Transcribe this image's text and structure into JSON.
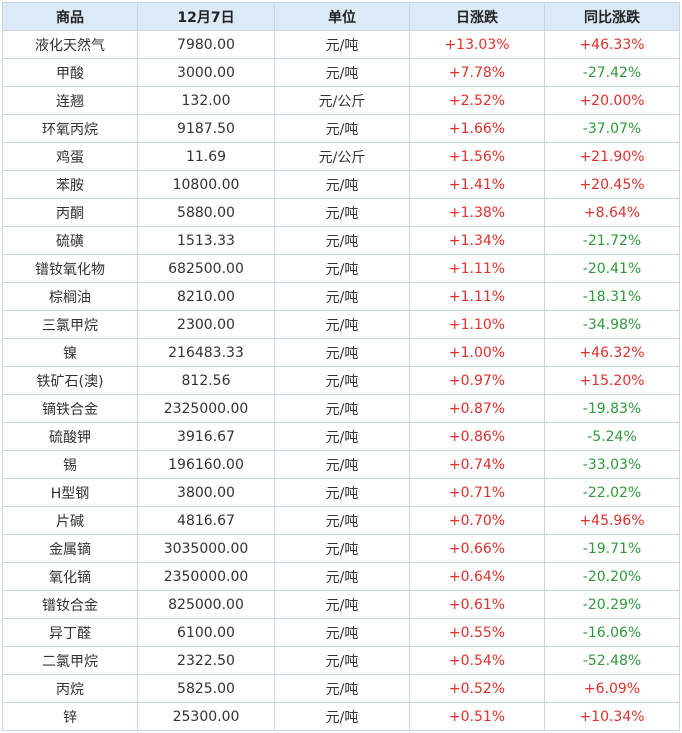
{
  "headers": [
    "商品",
    "12月7日",
    "单位",
    "日涨跌",
    "同比涨跌"
  ],
  "rows": [
    {
      "name": "液化天然气",
      "price": "7980.00",
      "unit": "元/吨",
      "daily": "+13.03%",
      "yoy": "+46.33%"
    },
    {
      "name": "甲酸",
      "price": "3000.00",
      "unit": "元/吨",
      "daily": "+7.78%",
      "yoy": "-27.42%"
    },
    {
      "name": "连翘",
      "price": "132.00",
      "unit": "元/公斤",
      "daily": "+2.52%",
      "yoy": "+20.00%"
    },
    {
      "name": "环氧丙烷",
      "price": "9187.50",
      "unit": "元/吨",
      "daily": "+1.66%",
      "yoy": "-37.07%"
    },
    {
      "name": "鸡蛋",
      "price": "11.69",
      "unit": "元/公斤",
      "daily": "+1.56%",
      "yoy": "+21.90%"
    },
    {
      "name": "苯胺",
      "price": "10800.00",
      "unit": "元/吨",
      "daily": "+1.41%",
      "yoy": "+20.45%"
    },
    {
      "name": "丙酮",
      "price": "5880.00",
      "unit": "元/吨",
      "daily": "+1.38%",
      "yoy": "+8.64%"
    },
    {
      "name": "硫磺",
      "price": "1513.33",
      "unit": "元/吨",
      "daily": "+1.34%",
      "yoy": "-21.72%"
    },
    {
      "name": "镨钕氧化物",
      "price": "682500.00",
      "unit": "元/吨",
      "daily": "+1.11%",
      "yoy": "-20.41%"
    },
    {
      "name": "棕榈油",
      "price": "8210.00",
      "unit": "元/吨",
      "daily": "+1.11%",
      "yoy": "-18.31%"
    },
    {
      "name": "三氯甲烷",
      "price": "2300.00",
      "unit": "元/吨",
      "daily": "+1.10%",
      "yoy": "-34.98%"
    },
    {
      "name": "镍",
      "price": "216483.33",
      "unit": "元/吨",
      "daily": "+1.00%",
      "yoy": "+46.32%"
    },
    {
      "name": "铁矿石(澳)",
      "price": "812.56",
      "unit": "元/吨",
      "daily": "+0.97%",
      "yoy": "+15.20%"
    },
    {
      "name": "镝铁合金",
      "price": "2325000.00",
      "unit": "元/吨",
      "daily": "+0.87%",
      "yoy": "-19.83%"
    },
    {
      "name": "硫酸钾",
      "price": "3916.67",
      "unit": "元/吨",
      "daily": "+0.86%",
      "yoy": "-5.24%"
    },
    {
      "name": "锡",
      "price": "196160.00",
      "unit": "元/吨",
      "daily": "+0.74%",
      "yoy": "-33.03%"
    },
    {
      "name": "H型钢",
      "price": "3800.00",
      "unit": "元/吨",
      "daily": "+0.71%",
      "yoy": "-22.02%"
    },
    {
      "name": "片碱",
      "price": "4816.67",
      "unit": "元/吨",
      "daily": "+0.70%",
      "yoy": "+45.96%"
    },
    {
      "name": "金属镝",
      "price": "3035000.00",
      "unit": "元/吨",
      "daily": "+0.66%",
      "yoy": "-19.71%"
    },
    {
      "name": "氧化镝",
      "price": "2350000.00",
      "unit": "元/吨",
      "daily": "+0.64%",
      "yoy": "-20.20%"
    },
    {
      "name": "镨钕合金",
      "price": "825000.00",
      "unit": "元/吨",
      "daily": "+0.61%",
      "yoy": "-20.29%"
    },
    {
      "name": "异丁醛",
      "price": "6100.00",
      "unit": "元/吨",
      "daily": "+0.55%",
      "yoy": "-16.06%"
    },
    {
      "name": "二氯甲烷",
      "price": "2322.50",
      "unit": "元/吨",
      "daily": "+0.54%",
      "yoy": "-52.48%"
    },
    {
      "name": "丙烷",
      "price": "5825.00",
      "unit": "元/吨",
      "daily": "+0.52%",
      "yoy": "+6.09%"
    },
    {
      "name": "锌",
      "price": "25300.00",
      "unit": "元/吨",
      "daily": "+0.51%",
      "yoy": "+10.34%"
    }
  ],
  "colors": {
    "header_bg": "#dce9f7",
    "border": "#c9d5e6",
    "up": "#e0302a",
    "down": "#2f9a3a"
  }
}
